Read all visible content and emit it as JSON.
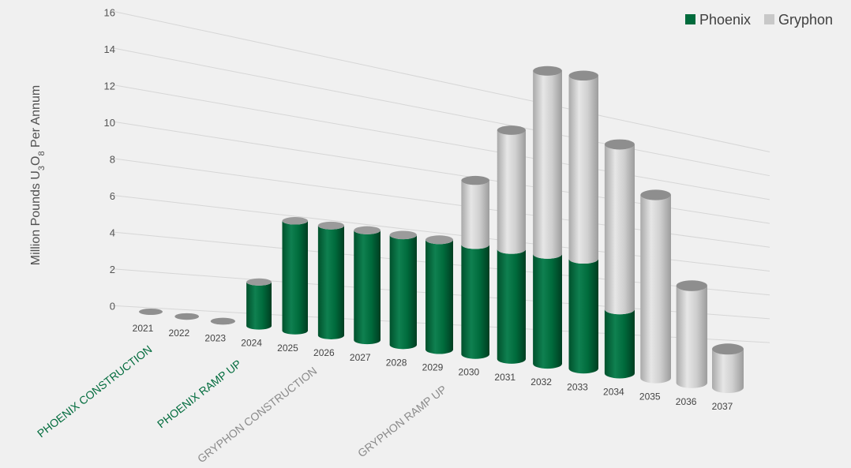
{
  "chart_data": {
    "type": "bar",
    "ylabel": "Million Pounds U3O8 Per Annum",
    "ylim": [
      0,
      16
    ],
    "yticks": [
      0,
      2,
      4,
      6,
      8,
      10,
      12,
      14,
      16
    ],
    "grid": true,
    "legend_position": "top-right",
    "categories": [
      "2021",
      "2022",
      "2023",
      "2024",
      "2025",
      "2026",
      "2027",
      "2028",
      "2029",
      "2030",
      "2031",
      "2032",
      "2033",
      "2034",
      "2035",
      "2036",
      "2037"
    ],
    "series": [
      {
        "name": "Phoenix",
        "color": "#006b3c",
        "values": [
          0,
          0,
          0,
          2.4,
          6.0,
          6.0,
          6.0,
          6.0,
          6.0,
          6.0,
          6.0,
          6.0,
          6.0,
          3.5,
          0,
          0,
          0
        ]
      },
      {
        "name": "Gryphon",
        "color": "#c8c8c8",
        "values": [
          0,
          0,
          0,
          0,
          0,
          0,
          0,
          0,
          0,
          3.5,
          6.5,
          10.0,
          10.0,
          9.0,
          10.0,
          5.3,
          2.1
        ]
      }
    ],
    "phases": [
      {
        "label": "PHOENIX CONSTRUCTION",
        "color": "#006b3c"
      },
      {
        "label": "PHOENIX RAMP UP",
        "color": "#006b3c"
      },
      {
        "label": "GRYPHON CONSTRUCTION",
        "color": "#8a8a8a"
      },
      {
        "label": "GRYPHON RAMP UP",
        "color": "#8a8a8a"
      }
    ]
  }
}
